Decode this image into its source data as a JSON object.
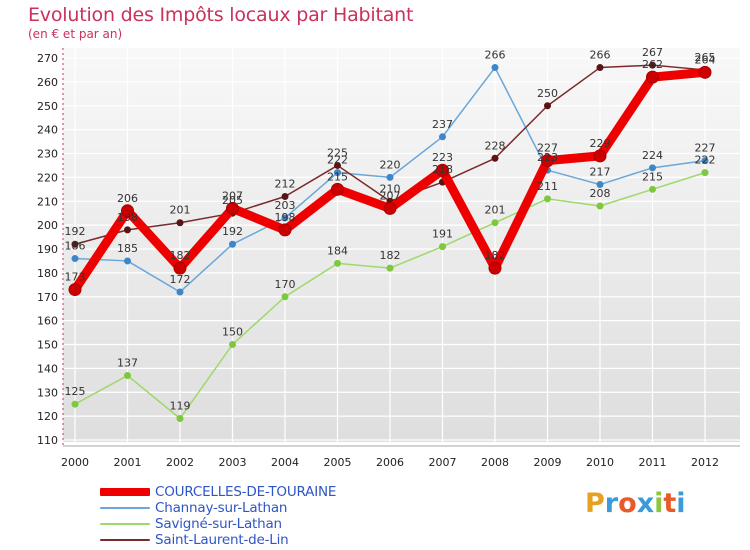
{
  "title": "Evolution des Impôts locaux par Habitant",
  "subtitle": "(en € et par an)",
  "logo": {
    "letters": [
      "P",
      "r",
      "o",
      "x",
      "i",
      "t",
      "i"
    ],
    "colors": [
      "#e8a020",
      "#3b9ad9",
      "#e85a2a",
      "#3b9ad9",
      "#8cc63f",
      "#e85a2a",
      "#3b9ad9"
    ]
  },
  "chart_data": {
    "type": "line",
    "title": "Evolution des Impôts locaux par Habitant",
    "ylabel": "(en € et par an)",
    "xlabel": "",
    "categories": [
      "2000",
      "2001",
      "2002",
      "2003",
      "2004",
      "2005",
      "2006",
      "2007",
      "2008",
      "2009",
      "2010",
      "2011",
      "2012"
    ],
    "ylim": [
      110,
      270
    ],
    "yticks": [
      110,
      120,
      130,
      140,
      150,
      160,
      170,
      180,
      190,
      200,
      210,
      220,
      230,
      240,
      250,
      260,
      270
    ],
    "grid": true,
    "legend_position": "bottom-left",
    "series": [
      {
        "name": "COURCELLES-DE-TOURAINE",
        "color": "#ee0000",
        "marker": "#cc0000",
        "weight": "heavy",
        "values": [
          173,
          206,
          182,
          207,
          198,
          215,
          207,
          223,
          182,
          227,
          229,
          262,
          264
        ],
        "labels": [
          "173",
          "206",
          "182",
          "207",
          "198",
          "215",
          "207",
          "223",
          "182",
          "227",
          "229",
          "262",
          "264"
        ]
      },
      {
        "name": "Channay-sur-Lathan",
        "color": "#6aa6d8",
        "marker": "#3d86c8",
        "weight": "thin",
        "values": [
          186,
          185,
          172,
          192,
          203,
          222,
          220,
          237,
          266,
          223,
          217,
          224,
          227
        ],
        "labels": [
          "186",
          "185",
          "172",
          "192",
          "203",
          "222",
          "220",
          "237",
          "266",
          "223",
          "217",
          "224",
          "227"
        ]
      },
      {
        "name": "Savigné-sur-Lathan",
        "color": "#9fd86a",
        "marker": "#7ec83d",
        "weight": "thin",
        "values": [
          125,
          137,
          119,
          150,
          170,
          184,
          182,
          191,
          201,
          211,
          208,
          215,
          222
        ],
        "labels": [
          "125",
          "137",
          "119",
          "150",
          "170",
          "184",
          "182",
          "191",
          "201",
          "211",
          "208",
          "215",
          "222"
        ]
      },
      {
        "name": "Saint-Laurent-de-Lin",
        "color": "#7a2a2a",
        "marker": "#5a1414",
        "weight": "thin",
        "values": [
          192,
          198,
          201,
          205,
          212,
          225,
          210,
          218,
          228,
          250,
          266,
          267,
          265
        ],
        "labels": [
          "192",
          "198",
          "201",
          "205",
          "212",
          "225",
          "210",
          "218",
          "228",
          "250",
          "266",
          "267",
          "265"
        ]
      }
    ]
  }
}
